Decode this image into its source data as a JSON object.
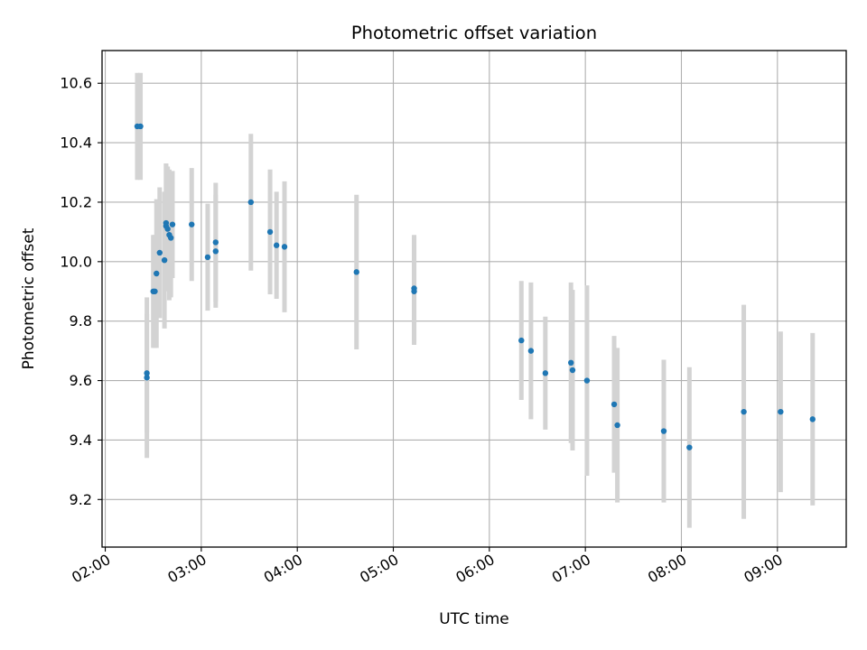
{
  "chart_data": {
    "type": "scatter",
    "title": "Photometric offset variation",
    "xlabel": "UTC time",
    "ylabel": "Photometric offset",
    "x_ticks": [
      "02:00",
      "03:00",
      "04:00",
      "05:00",
      "06:00",
      "07:00",
      "08:00",
      "09:00"
    ],
    "y_ticks": [
      9.2,
      9.4,
      9.6,
      9.8,
      10.0,
      10.2,
      10.4,
      10.6
    ],
    "xlim": [
      "01:58",
      "09:43"
    ],
    "ylim": [
      9.04,
      10.71
    ],
    "grid": true,
    "colors": {
      "point": "#1f77b4",
      "errorbar": "#d3d3d3",
      "grid": "#b0b0b0"
    },
    "points": [
      {
        "x": "02:20",
        "y": 10.455,
        "err": 0.18
      },
      {
        "x": "02:22",
        "y": 10.455,
        "err": 0.18
      },
      {
        "x": "02:26",
        "y": 9.625,
        "err": 0.2
      },
      {
        "x": "02:26",
        "y": 9.61,
        "err": 0.27
      },
      {
        "x": "02:30",
        "y": 9.9,
        "err": 0.19
      },
      {
        "x": "02:31",
        "y": 9.9,
        "err": 0.19
      },
      {
        "x": "02:32",
        "y": 9.96,
        "err": 0.25
      },
      {
        "x": "02:34",
        "y": 10.03,
        "err": 0.22
      },
      {
        "x": "02:37",
        "y": 10.005,
        "err": 0.23
      },
      {
        "x": "02:38",
        "y": 10.13,
        "err": 0.2
      },
      {
        "x": "02:38",
        "y": 10.12,
        "err": 0.21
      },
      {
        "x": "02:39",
        "y": 10.11,
        "err": 0.21
      },
      {
        "x": "02:40",
        "y": 10.09,
        "err": 0.22
      },
      {
        "x": "02:41",
        "y": 10.08,
        "err": 0.2
      },
      {
        "x": "02:42",
        "y": 10.125,
        "err": 0.18
      },
      {
        "x": "02:54",
        "y": 10.125,
        "err": 0.19
      },
      {
        "x": "03:04",
        "y": 10.015,
        "err": 0.18
      },
      {
        "x": "03:09",
        "y": 10.065,
        "err": 0.2
      },
      {
        "x": "03:09",
        "y": 10.035,
        "err": 0.19
      },
      {
        "x": "03:31",
        "y": 10.2,
        "err": 0.23
      },
      {
        "x": "03:43",
        "y": 10.1,
        "err": 0.21
      },
      {
        "x": "03:47",
        "y": 10.055,
        "err": 0.18
      },
      {
        "x": "03:52",
        "y": 10.05,
        "err": 0.22
      },
      {
        "x": "04:37",
        "y": 9.965,
        "err": 0.26
      },
      {
        "x": "05:13",
        "y": 9.91,
        "err": 0.18
      },
      {
        "x": "05:13",
        "y": 9.9,
        "err": 0.18
      },
      {
        "x": "06:20",
        "y": 9.735,
        "err": 0.2
      },
      {
        "x": "06:26",
        "y": 9.7,
        "err": 0.23
      },
      {
        "x": "06:35",
        "y": 9.625,
        "err": 0.19
      },
      {
        "x": "06:51",
        "y": 9.66,
        "err": 0.27
      },
      {
        "x": "06:52",
        "y": 9.635,
        "err": 0.27
      },
      {
        "x": "07:01",
        "y": 9.6,
        "err": 0.32
      },
      {
        "x": "07:18",
        "y": 9.52,
        "err": 0.23
      },
      {
        "x": "07:20",
        "y": 9.45,
        "err": 0.26
      },
      {
        "x": "07:49",
        "y": 9.43,
        "err": 0.24
      },
      {
        "x": "08:05",
        "y": 9.375,
        "err": 0.27
      },
      {
        "x": "08:39",
        "y": 9.495,
        "err": 0.36
      },
      {
        "x": "09:02",
        "y": 9.495,
        "err": 0.27
      },
      {
        "x": "09:22",
        "y": 9.47,
        "err": 0.29
      }
    ]
  }
}
